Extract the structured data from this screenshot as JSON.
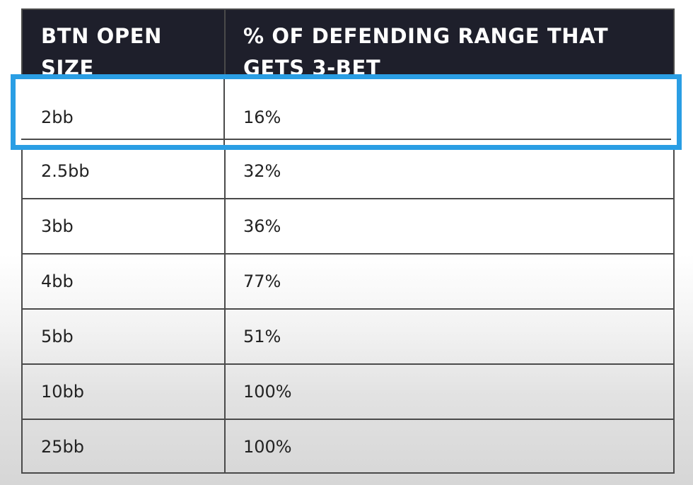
{
  "table": {
    "headers": [
      "BTN OPEN SIZE",
      "% OF DEFENDING RANGE THAT GETS 3-BET"
    ],
    "rows": [
      [
        "2bb",
        "16%"
      ],
      [
        "2.5bb",
        "32%"
      ],
      [
        "3bb",
        "36%"
      ],
      [
        "4bb",
        "77%"
      ],
      [
        "5bb",
        "51%"
      ],
      [
        "10bb",
        "100%"
      ],
      [
        "25bb",
        "100%"
      ]
    ]
  },
  "highlight": {
    "row_index": 0,
    "color": "#2a9ee4"
  },
  "colors": {
    "header_background": "#1e1f2b",
    "header_text": "#ffffff",
    "grid_lines": "#4a4a4a",
    "cell_text": "#222222"
  }
}
